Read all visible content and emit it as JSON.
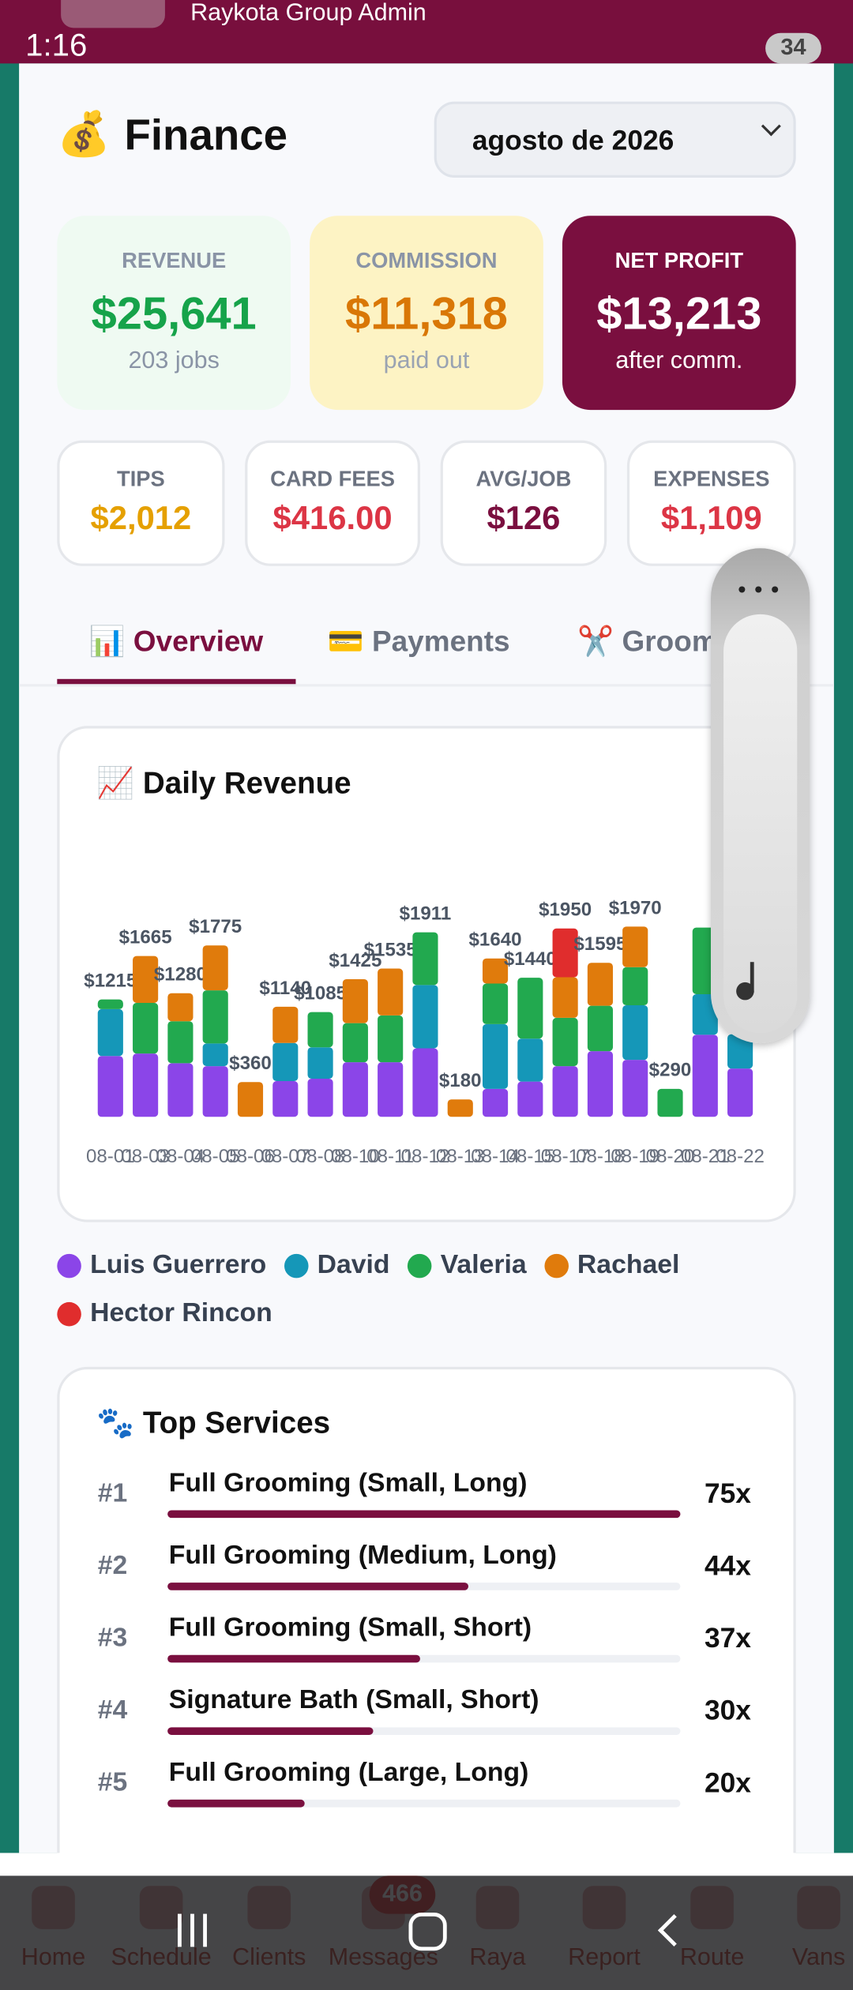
{
  "status_bar": {
    "time": "1:16",
    "app": "Raykota Group Admin",
    "battery": "34"
  },
  "header": {
    "icon": "💰",
    "title": "Finance",
    "month": "agosto de 2026"
  },
  "cards": [
    {
      "label": "REVENUE",
      "value": "$25,641",
      "sub": "203 jobs"
    },
    {
      "label": "COMMISSION",
      "value": "$11,318",
      "sub": "paid out"
    },
    {
      "label": "NET PROFIT",
      "value": "$13,213",
      "sub": "after comm."
    }
  ],
  "stats": [
    {
      "label": "TIPS",
      "value": "$2,012"
    },
    {
      "label": "CARD FEES",
      "value": "$416.00"
    },
    {
      "label": "AVG/JOB",
      "value": "$126"
    },
    {
      "label": "EXPENSES",
      "value": "$1,109"
    }
  ],
  "tabs": [
    "📊 Overview",
    "💳 Payments",
    "✂️ Groom"
  ],
  "chart_data": {
    "type": "bar",
    "stacked": true,
    "title": "📈 Daily Revenue",
    "categories": [
      "08-01",
      "08-03",
      "08-04",
      "08-05",
      "08-06",
      "08-07",
      "08-08",
      "08-10",
      "08-11",
      "08-12",
      "08-13",
      "08-14",
      "08-15",
      "08-17",
      "08-18",
      "08-19",
      "08-20",
      "08-21",
      "08-22"
    ],
    "series": [
      {
        "name": "Luis Guerrero",
        "color": "#8b45e8",
        "values": [
          630,
          655,
          555,
          525,
          null,
          370,
          395,
          565,
          565,
          710,
          null,
          290,
          365,
          525,
          680,
          590,
          null,
          850,
          500
        ]
      },
      {
        "name": "David",
        "color": "#1597b8",
        "values": [
          485,
          null,
          null,
          235,
          null,
          395,
          325,
          null,
          null,
          655,
          null,
          670,
          445,
          null,
          null,
          565,
          null,
          420,
          355
        ]
      },
      {
        "name": "Valeria",
        "color": "#22a94f",
        "values": [
          100,
          525,
          435,
          550,
          null,
          null,
          365,
          405,
          485,
          546,
          null,
          420,
          630,
          500,
          470,
          395,
          290,
          690,
          null
        ]
      },
      {
        "name": "Rachael",
        "color": "#e07b0c",
        "values": [
          null,
          485,
          290,
          465,
          360,
          375,
          null,
          455,
          485,
          null,
          180,
          260,
          null,
          420,
          445,
          420,
          null,
          null,
          null
        ]
      },
      {
        "name": "Hector Rincon",
        "color": "#e02d2d",
        "values": [
          null,
          null,
          null,
          null,
          null,
          null,
          null,
          null,
          null,
          null,
          null,
          null,
          null,
          505,
          null,
          null,
          null,
          null,
          null
        ]
      }
    ],
    "totals": [
      {
        "value": 1215,
        "label": "$1215"
      },
      {
        "value": 1665,
        "label": "$1665"
      },
      {
        "value": 1280,
        "label": "$1280"
      },
      {
        "value": 1775,
        "label": "$1775"
      },
      {
        "value": 360,
        "label": "$360"
      },
      {
        "value": 1140,
        "label": "$1140"
      },
      {
        "value": 1085,
        "label": "$1085"
      },
      {
        "value": 1425,
        "label": "$1425"
      },
      {
        "value": 1535,
        "label": "$1535"
      },
      {
        "value": 1911,
        "label": "$1911"
      },
      {
        "value": 180,
        "label": "$180"
      },
      {
        "value": 1640,
        "label": "$1640"
      },
      {
        "value": 1440,
        "label": "$1440"
      },
      {
        "value": 1950,
        "label": "$1950"
      },
      {
        "value": 1595,
        "label": "$1595"
      },
      {
        "value": 1970,
        "label": "$1970"
      },
      {
        "value": 290,
        "label": "$290"
      },
      null,
      null
    ]
  },
  "top_services": {
    "title": "🐾 Top Services",
    "items": [
      {
        "rank": "#1",
        "name": "Full Grooming (Small, Long)",
        "count": 75,
        "count_label": "75x"
      },
      {
        "rank": "#2",
        "name": "Full Grooming (Medium, Long)",
        "count": 44,
        "count_label": "44x"
      },
      {
        "rank": "#3",
        "name": "Full Grooming (Small, Short)",
        "count": 37,
        "count_label": "37x"
      },
      {
        "rank": "#4",
        "name": "Signature Bath (Small, Short)",
        "count": 30,
        "count_label": "30x"
      },
      {
        "rank": "#5",
        "name": "Full Grooming (Large, Long)",
        "count": 20,
        "count_label": "20x"
      }
    ]
  },
  "nav": {
    "items": [
      "Home",
      "Schedule",
      "Clients",
      "Messages",
      "Raya",
      "Report",
      "Route",
      "Vans"
    ],
    "badge": "466"
  }
}
